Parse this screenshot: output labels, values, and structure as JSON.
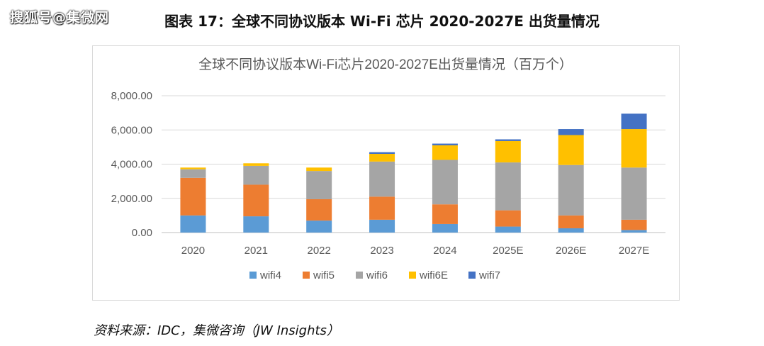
{
  "watermark": "搜狐号@集微网",
  "figure_title": "图表 17：全球不同协议版本 Wi-Fi 芯片 2020-2027E 出货量情况",
  "source_note": "资料来源：IDC，集微咨询（JW Insights）",
  "chart_data": {
    "type": "bar",
    "stacked": true,
    "title": "全球不同协议版本Wi-Fi芯片2020-2027E出货量情况（百万个）",
    "categories": [
      "2020",
      "2021",
      "2022",
      "2023",
      "2024",
      "2025E",
      "2026E",
      "2027E"
    ],
    "series": [
      {
        "name": "wifi4",
        "color": "#5b9bd5",
        "values": [
          1000,
          950,
          700,
          750,
          500,
          350,
          250,
          150
        ]
      },
      {
        "name": "wifi5",
        "color": "#ed7d31",
        "values": [
          2200,
          1850,
          1250,
          1350,
          1150,
          950,
          750,
          600
        ]
      },
      {
        "name": "wifi6",
        "color": "#a5a5a5",
        "values": [
          500,
          1100,
          1650,
          2050,
          2600,
          2800,
          2950,
          3050
        ]
      },
      {
        "name": "wifi6E",
        "color": "#ffc000",
        "values": [
          100,
          150,
          200,
          450,
          850,
          1250,
          1750,
          2250
        ]
      },
      {
        "name": "wifi7",
        "color": "#4472c4",
        "values": [
          0,
          0,
          0,
          100,
          100,
          100,
          350,
          900
        ]
      }
    ],
    "ylim": [
      0,
      8000
    ],
    "yticks": [
      0,
      2000,
      4000,
      6000,
      8000
    ],
    "ytick_labels": [
      "0.00",
      "2,000.00",
      "4,000.00",
      "6,000.00",
      "8,000.00"
    ],
    "grid": true,
    "legend_position": "bottom"
  }
}
